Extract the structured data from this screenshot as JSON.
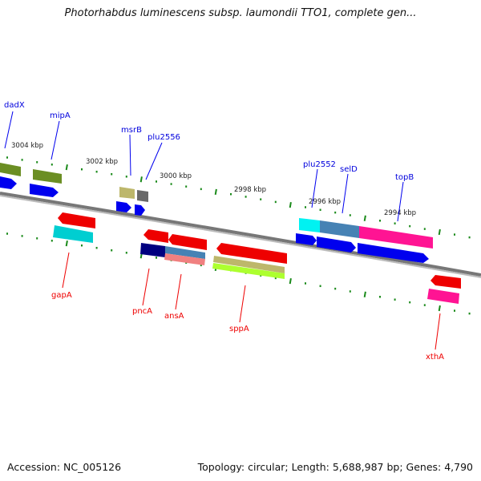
{
  "title": "Photorhabdus luminescens subsp. laumondii TTO1, complete gen...",
  "footer": {
    "accession": "Accession: NC_005126",
    "summary": "Topology: circular; Length: 5,688,987 bp; Genes: 4,790"
  },
  "colors": {
    "backbone": "#888888",
    "tick": "#1a8a1a",
    "upper_label": "#0000dd",
    "lower_label": "#ee0000"
  },
  "ruler_upper": [
    {
      "label": "3004 kbp"
    },
    {
      "label": "3002 kbp"
    },
    {
      "label": "3000 kbp"
    },
    {
      "label": "2998 kbp"
    },
    {
      "label": "2996 kbp"
    },
    {
      "label": "2994 kbp"
    }
  ],
  "upper_genes": [
    {
      "label": "dadX",
      "color": "#6b8e23"
    },
    {
      "label": "mipA",
      "color": "#6b8e23"
    },
    {
      "label": "msrB",
      "color": "#bdb76b"
    },
    {
      "label": "plu2556",
      "color": "#696969"
    },
    {
      "label": "plu2552",
      "color": "#00ffff"
    },
    {
      "label": "selD",
      "color": "#4682b4"
    },
    {
      "label": "topB",
      "color": "#ff1493"
    }
  ],
  "lower_genes": [
    {
      "label": "gapA",
      "color": "#00ced1"
    },
    {
      "label": "pncA",
      "color": "#000080"
    },
    {
      "label": "ansA",
      "color": "#4682b4"
    },
    {
      "label": "sppA",
      "color": "#bdb76b"
    },
    {
      "label": "xthA",
      "color": "#ff1493"
    }
  ]
}
